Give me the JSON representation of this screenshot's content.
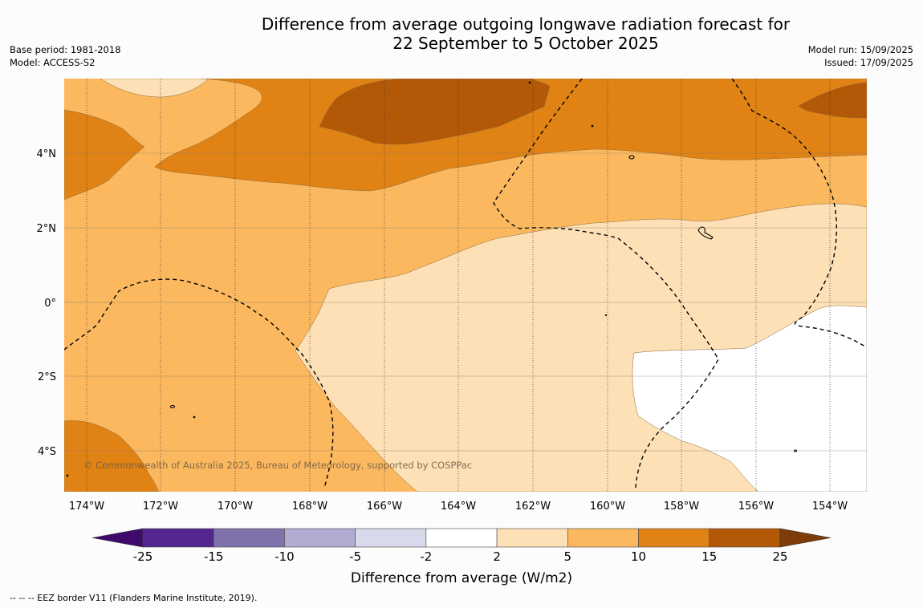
{
  "title_line1": "Difference from average outgoing longwave radiation forecast for",
  "title_line2": "22 September to 5 October 2025",
  "base_period": "Base period: 1981-2018",
  "model": "Model: ACCESS-S2",
  "model_run": "Model run: 15/09/2025",
  "issued": "Issued: 17/09/2025",
  "copyright": "© Commonwealth of Australia 2025, Bureau of Meteorology, supported by COSPPac",
  "lat_labels": [
    "4°N",
    "2°N",
    "0°",
    "2°S",
    "4°S"
  ],
  "lon_labels": [
    "174°W",
    "172°W",
    "170°W",
    "168°W",
    "166°W",
    "164°W",
    "162°W",
    "160°W",
    "158°W",
    "156°W",
    "154°W"
  ],
  "colorbar": {
    "label": "Difference from average (W/m2)",
    "ticks": [
      "-25",
      "-15",
      "-10",
      "-5",
      "-2",
      "2",
      "5",
      "10",
      "15",
      "25"
    ],
    "colors": [
      "#3f0a6b",
      "#54278f",
      "#8073ac",
      "#b2abd2",
      "#d8daeb",
      "#ffffff",
      "#fde0b6",
      "#fbb85f",
      "#e08214",
      "#b35806",
      "#7f3b08"
    ]
  },
  "footnote": "--  --  -- EEZ border V11 (Flanders Marine Institute, 2019).",
  "palette": {
    "c2_5": "#fde0b6",
    "c5_10": "#fbb85f",
    "c10_15": "#e08214",
    "c15_25": "#b35806",
    "neutral": "#ffffff"
  }
}
